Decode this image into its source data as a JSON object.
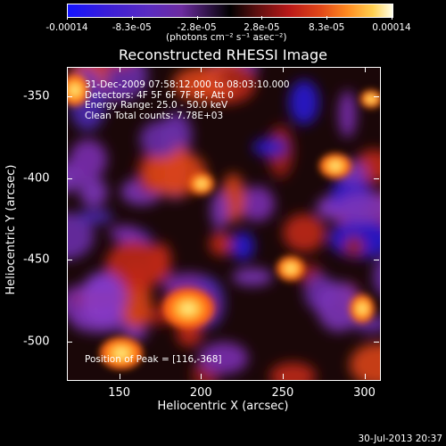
{
  "colorbar": {
    "tick_labels": [
      "-0.00014",
      "-8.3e-05",
      "-2.8e-05",
      "2.8e-05",
      "8.3e-05",
      "0.00014"
    ],
    "unit": "(photons cm⁻² s⁻¹ asec⁻²)"
  },
  "chart_data": {
    "type": "heatmap",
    "title": "Reconstructed RHESSI Image",
    "xlabel": "Heliocentric X (arcsec)",
    "ylabel": "Heliocentric Y (arcsec)",
    "xlim": [
      118,
      309
    ],
    "ylim": [
      -523,
      -332
    ],
    "x_ticks": [
      150,
      200,
      250,
      300
    ],
    "y_ticks": [
      -350,
      -400,
      -450,
      -500
    ],
    "color_range": [
      -0.00014,
      0.00014
    ],
    "annotations": [
      "31-Dec-2009 07:58:12.000 to 08:03:10.000",
      "Detectors: 4F 5F 6F 7F 8F, Att 0",
      "Energy Range: 25.0 - 50.0 keV",
      "Clean     Total counts: 7.78E+03"
    ],
    "peak_label": "Position of Peak = [116,-368]",
    "peak": [
      116,
      -368
    ]
  },
  "footer": {
    "date": "30-Jul-2013 20:37"
  }
}
